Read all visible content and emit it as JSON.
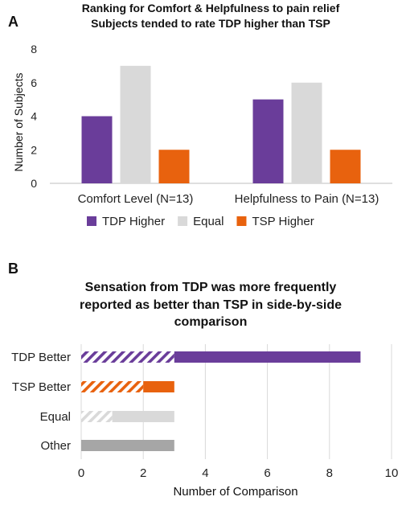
{
  "colors": {
    "tdp": "#6a3d9a",
    "equal": "#d9d9d9",
    "tsp": "#e8620e",
    "other": "#a6a6a6",
    "axis": "#bfbfbf",
    "grid": "#d9d9d9"
  },
  "panel_a": {
    "letter": "A",
    "title_line1": "Ranking for Comfort & Helpfulness to pain relief",
    "title_line2": "Subjects tended to rate TDP higher than TSP"
  },
  "panel_b": {
    "letter": "B",
    "title_line1": "Sensation from TDP was more frequently",
    "title_line2": "reported as better than TSP in side-by-side",
    "title_line3": "comparison"
  },
  "chart_data": [
    {
      "type": "bar",
      "title": "Ranking for Comfort & Helpfulness to pain relief",
      "subtitle": "Subjects tended to rate TDP higher than TSP",
      "categories": [
        "Comfort Level (N=13)",
        "Helpfulness to Pain (N=13)"
      ],
      "series": [
        {
          "name": "TDP Higher",
          "values": [
            4,
            5
          ],
          "color": "#6a3d9a"
        },
        {
          "name": "Equal",
          "values": [
            7,
            6
          ],
          "color": "#d9d9d9"
        },
        {
          "name": "TSP Higher",
          "values": [
            2,
            2
          ],
          "color": "#e8620e"
        }
      ],
      "xlabel": "",
      "ylabel": "Number of Subjects",
      "ylim": [
        0,
        8
      ],
      "yticks": [
        "0",
        "2",
        "4",
        "6",
        "8"
      ],
      "grid": false,
      "legend": "bottom"
    },
    {
      "type": "bar",
      "orientation": "horizontal",
      "stacked": true,
      "title": "Sensation from TDP was more frequently reported as better than TSP in side-by-side comparison",
      "categories": [
        "TDP Better",
        "TSP Better",
        "Equal",
        "Other"
      ],
      "series": [
        {
          "values": [
            3,
            2,
            1,
            3
          ],
          "pattern": [
            "hatched",
            "hatched",
            "hatched",
            "solid"
          ]
        },
        {
          "values": [
            6,
            1,
            2,
            0
          ],
          "pattern": "solid"
        }
      ],
      "colors": [
        "#6a3d9a",
        "#e8620e",
        "#d9d9d9",
        "#a6a6a6"
      ],
      "xlabel": "Number of Comparison",
      "ylabel": "",
      "xlim": [
        0,
        10
      ],
      "xticks": [
        "0",
        "2",
        "4",
        "6",
        "8",
        "10"
      ],
      "grid": true,
      "legend": "none"
    }
  ]
}
